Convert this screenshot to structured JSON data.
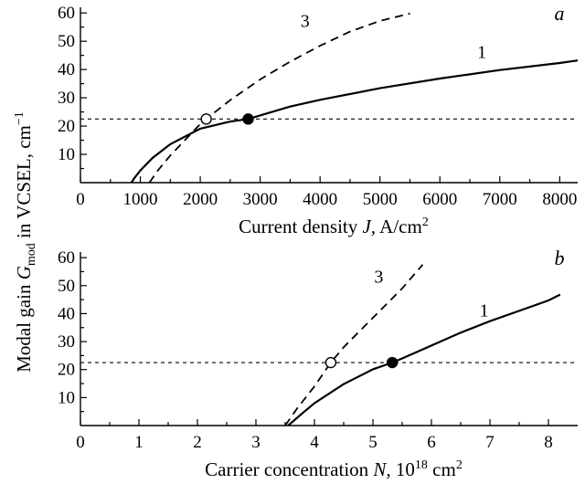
{
  "ylabel_shared": {
    "prefix": "Modal gain ",
    "symbol": "G",
    "sub": "mod",
    "suffix": " in VCSEL, cm",
    "sup": "−1"
  },
  "chart_data": [
    {
      "type": "line",
      "panel_label": "a",
      "xlabel": {
        "text": "Current density ",
        "italic": "J,",
        "unit": " A/cm",
        "sup": "2"
      },
      "xlim": [
        0,
        8300
      ],
      "ylim": [
        0,
        62
      ],
      "x_ticks": [
        0,
        1000,
        2000,
        3000,
        4000,
        5000,
        6000,
        7000,
        8000
      ],
      "x_tick_labels": [
        "0",
        "1000",
        "2000",
        "3000",
        "4000",
        "5000",
        "6000",
        "7000",
        "8000"
      ],
      "y_ticks": [
        10,
        20,
        30,
        40,
        50,
        60
      ],
      "y_tick_labels": [
        "10",
        "20",
        "30",
        "40",
        "50",
        "60"
      ],
      "threshold": 22.5,
      "series": [
        {
          "name": "1",
          "style": "solid",
          "x": [
            850,
            900,
            1000,
            1200,
            1500,
            2000,
            2500,
            2800,
            3500,
            4000,
            5000,
            6000,
            7000,
            8000,
            8300
          ],
          "y": [
            0,
            1.6,
            4.3,
            8.7,
            13.6,
            19.1,
            21.6,
            22.5,
            26.9,
            29.3,
            33.4,
            36.8,
            39.8,
            42.3,
            43.2
          ]
        },
        {
          "name": "3",
          "style": "dashed",
          "x": [
            1150,
            1300,
            1500,
            2000,
            2100,
            2500,
            3000,
            3500,
            4000,
            4500,
            5000,
            5500
          ],
          "y": [
            0,
            4.5,
            9.6,
            20.7,
            22.5,
            29.2,
            36.5,
            42.8,
            48.4,
            53.4,
            57.2,
            59.8
          ]
        }
      ],
      "markers": [
        {
          "series": "1",
          "x": 2800,
          "y": 22.5,
          "filled": true
        },
        {
          "series": "3",
          "x": 2100,
          "y": 22.5,
          "filled": false
        }
      ],
      "curve_labels": [
        {
          "text": "1",
          "x": 6700,
          "y": 44
        },
        {
          "text": "3",
          "x": 3750,
          "y": 55
        }
      ]
    },
    {
      "type": "line",
      "panel_label": "b",
      "xlabel": {
        "text": "Carrier concentration ",
        "italic": "N,",
        "unit": " 10",
        "sup": "18",
        "unit2": " cm",
        "sup2": "2"
      },
      "xlim": [
        0,
        8.5
      ],
      "ylim": [
        0,
        62
      ],
      "x_ticks": [
        0,
        1,
        2,
        3,
        4,
        5,
        6,
        7,
        8
      ],
      "x_tick_labels": [
        "0",
        "1",
        "2",
        "3",
        "4",
        "5",
        "6",
        "7",
        "8"
      ],
      "y_ticks": [
        10,
        20,
        30,
        40,
        50,
        60
      ],
      "y_tick_labels": [
        "10",
        "20",
        "30",
        "40",
        "50",
        "60"
      ],
      "threshold": 22.5,
      "series": [
        {
          "name": "1",
          "style": "solid",
          "x": [
            3.55,
            3.8,
            4.0,
            4.5,
            5.0,
            5.33,
            5.5,
            6.0,
            6.5,
            7.0,
            7.5,
            8.0,
            8.2
          ],
          "y": [
            0,
            4.5,
            8.0,
            14.8,
            20.1,
            22.5,
            24.0,
            28.6,
            33.2,
            37.3,
            41.0,
            44.7,
            46.8
          ]
        },
        {
          "name": "3",
          "style": "dashed",
          "x": [
            3.5,
            3.7,
            4.0,
            4.28,
            4.5,
            5.0,
            5.5,
            5.85
          ],
          "y": [
            0,
            6.0,
            14.0,
            22.5,
            28.0,
            38.5,
            49.0,
            57.5
          ]
        }
      ],
      "markers": [
        {
          "series": "1",
          "x": 5.33,
          "y": 22.5,
          "filled": true
        },
        {
          "series": "3",
          "x": 4.28,
          "y": 22.5,
          "filled": false
        }
      ],
      "curve_labels": [
        {
          "text": "1",
          "x": 6.9,
          "y": 39
        },
        {
          "text": "3",
          "x": 5.1,
          "y": 51
        }
      ]
    }
  ]
}
